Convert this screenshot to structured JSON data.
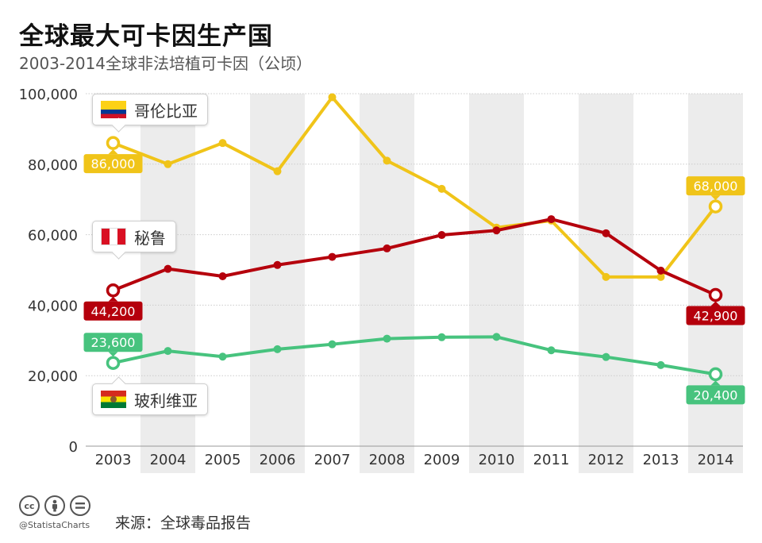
{
  "title": "全球最大可卡因生产国",
  "subtitle": "2003-2014全球非法培植可卡因（公顷）",
  "footer": {
    "handle": "@StatistaCharts",
    "source_label": "来源：",
    "source": "全球毒品报告"
  },
  "icons": [
    "cc-icon",
    "by-icon",
    "nd-icon"
  ],
  "colors": {
    "colombia": "#f0c419",
    "peru": "#b5000c",
    "bolivia": "#47c37e",
    "band": "#ececec",
    "grid": "#cccccc"
  },
  "chart_data": {
    "type": "line",
    "title": "全球最大可卡因生产国",
    "subtitle": "2003-2014全球非法培植可卡因（公顷）",
    "xlabel": "",
    "ylabel": "",
    "categories": [
      "2003",
      "2004",
      "2005",
      "2006",
      "2007",
      "2008",
      "2009",
      "2010",
      "2011",
      "2012",
      "2013",
      "2014"
    ],
    "ylim": [
      0,
      100000
    ],
    "yticks": [
      0,
      20000,
      40000,
      60000,
      80000,
      100000
    ],
    "ytick_labels": [
      "0",
      "20,000",
      "40,000",
      "60,000",
      "80,000",
      "100,000"
    ],
    "grid": true,
    "series": [
      {
        "name": "哥伦比亚",
        "key": "colombia",
        "values": [
          86000,
          80000,
          86000,
          78000,
          99000,
          81000,
          73000,
          62000,
          64000,
          48000,
          48000,
          68000
        ],
        "start_label": "86,000",
        "end_label": "68,000"
      },
      {
        "name": "秘鲁",
        "key": "peru",
        "values": [
          44200,
          50300,
          48200,
          51400,
          53700,
          56100,
          59900,
          61200,
          64400,
          60400,
          49800,
          42900
        ],
        "start_label": "44,200",
        "end_label": "42,900"
      },
      {
        "name": "玻利维亚",
        "key": "bolivia",
        "values": [
          23600,
          27000,
          25400,
          27500,
          28900,
          30500,
          30900,
          31000,
          27200,
          25300,
          23000,
          20400
        ],
        "start_label": "23,600",
        "end_label": "20,400"
      }
    ]
  }
}
